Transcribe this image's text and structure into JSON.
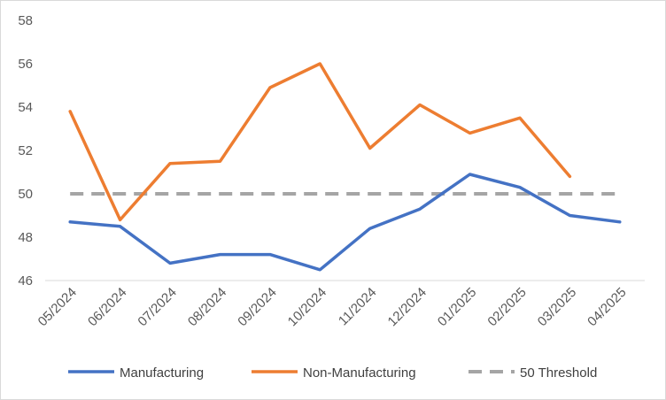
{
  "chart_data": {
    "type": "line",
    "title": "",
    "xlabel": "",
    "ylabel": "",
    "categories": [
      "05/2024",
      "06/2024",
      "07/2024",
      "08/2024",
      "09/2024",
      "10/2024",
      "11/2024",
      "12/2024",
      "01/2025",
      "02/2025",
      "03/2025",
      "04/2025"
    ],
    "ylim": [
      46,
      58
    ],
    "yticks": [
      46,
      48,
      50,
      52,
      54,
      56,
      58
    ],
    "grid": false,
    "legend_position": "bottom",
    "series": [
      {
        "name": "Manufacturing",
        "color": "#4472c4",
        "style": "solid",
        "values": [
          48.7,
          48.5,
          46.8,
          47.2,
          47.2,
          46.5,
          48.4,
          49.3,
          50.9,
          50.3,
          49.0,
          48.7
        ]
      },
      {
        "name": "Non-Manufacturing",
        "color": "#ed7d31",
        "style": "solid",
        "values": [
          53.8,
          48.8,
          51.4,
          51.5,
          54.9,
          56.0,
          52.1,
          54.1,
          52.8,
          53.5,
          50.8,
          null
        ]
      },
      {
        "name": "50 Threshold",
        "color": "#a5a5a5",
        "style": "dashed",
        "values": [
          50,
          50,
          50,
          50,
          50,
          50,
          50,
          50,
          50,
          50,
          50,
          50
        ]
      }
    ]
  }
}
